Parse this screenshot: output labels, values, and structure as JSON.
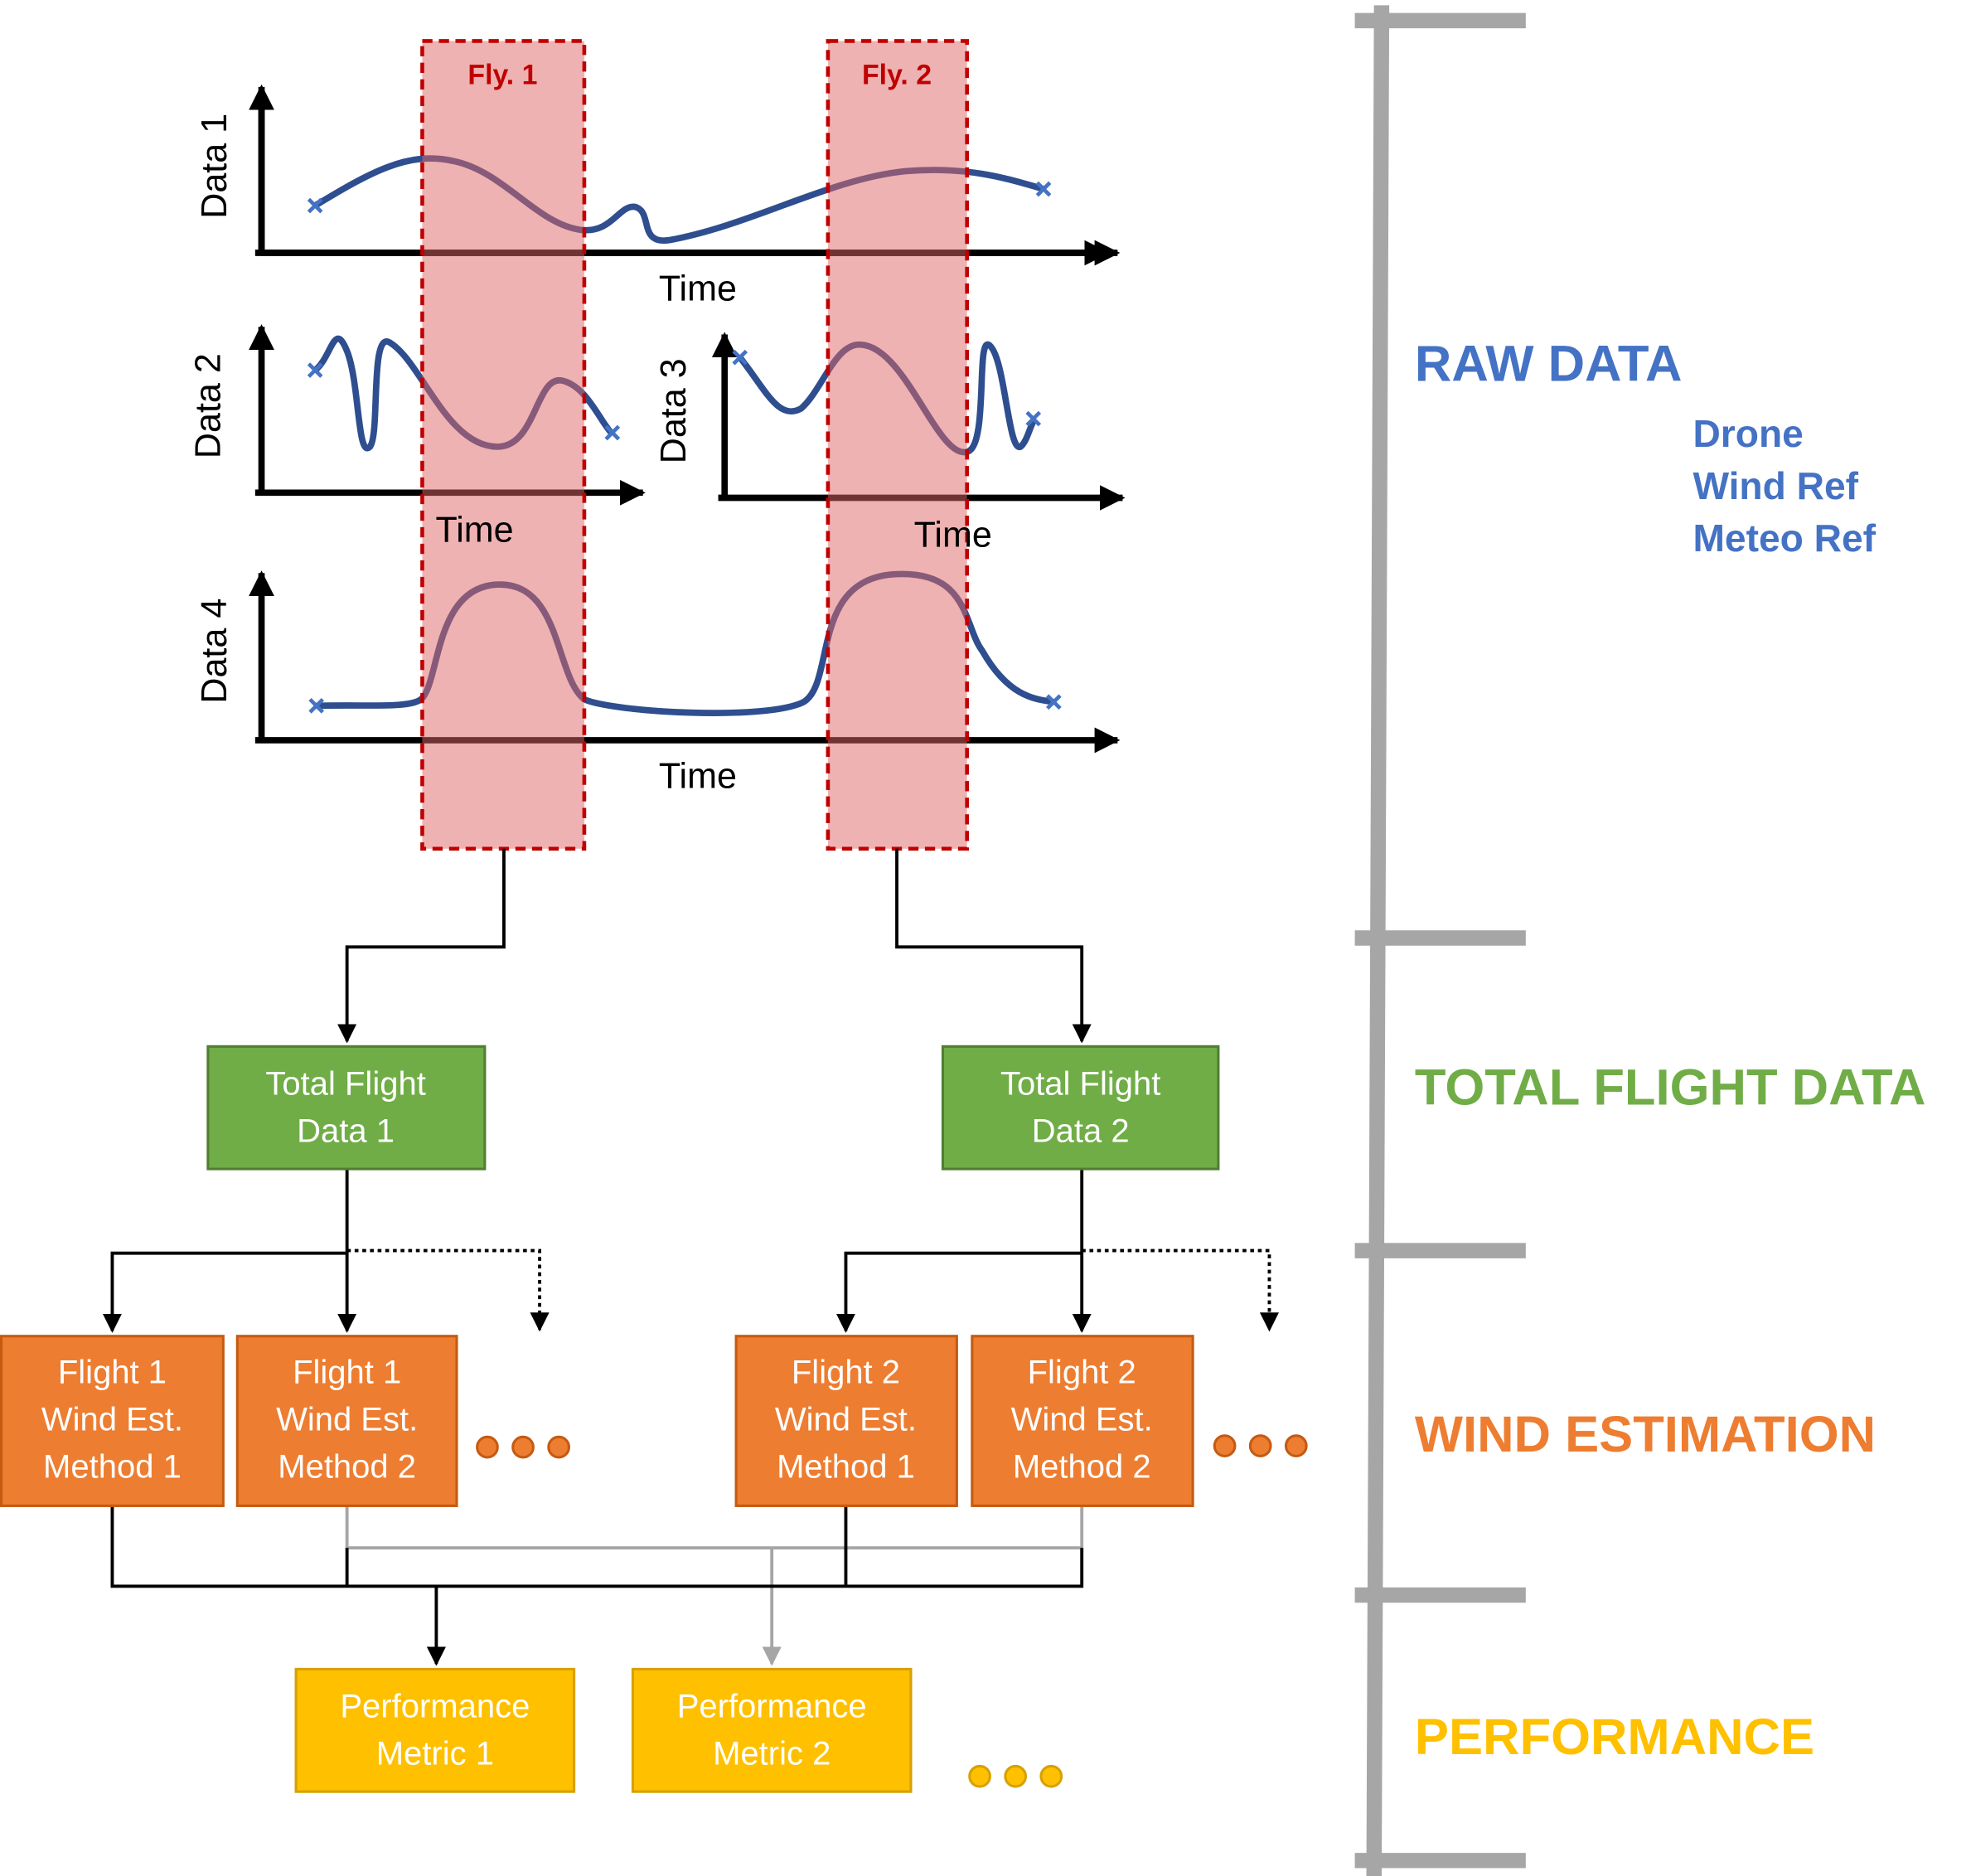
{
  "flights": [
    "Fly. 1",
    "Fly. 2"
  ],
  "plots": [
    {
      "ylabel": "Data 1",
      "xlabel": "Time"
    },
    {
      "ylabel": "Data 2",
      "xlabel": "Time"
    },
    {
      "ylabel": "Data 3",
      "xlabel": "Time"
    },
    {
      "ylabel": "Data 4",
      "xlabel": "Time"
    }
  ],
  "total_flight_boxes": [
    [
      "Total Flight",
      "Data 1"
    ],
    [
      "Total Flight",
      "Data 2"
    ]
  ],
  "wind_boxes": [
    [
      "Flight 1",
      "Wind Est.",
      "Method 1"
    ],
    [
      "Flight 1",
      "Wind Est.",
      "Method 2"
    ],
    [
      "Flight 2",
      "Wind Est.",
      "Method 1"
    ],
    [
      "Flight 2",
      "Wind Est.",
      "Method 2"
    ]
  ],
  "performance_boxes": [
    [
      "Performance",
      "Metric 1"
    ],
    [
      "Performance",
      "Metric 2"
    ]
  ],
  "stages": {
    "raw_data": "RAW DATA",
    "raw_sources": [
      "Drone",
      "Wind Ref",
      "Meteo Ref"
    ],
    "total_flight_data": "TOTAL FLIGHT DATA",
    "wind_estimation": "WIND ESTIMATION",
    "performance": "PERFORMANCE"
  }
}
